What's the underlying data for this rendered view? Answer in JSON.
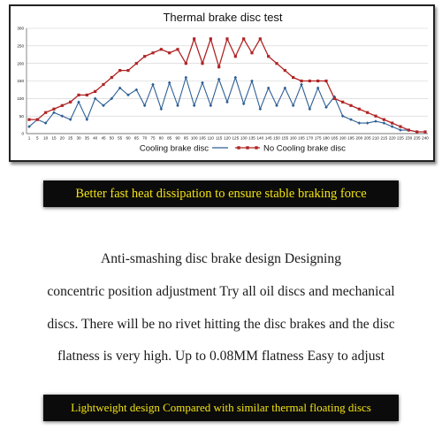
{
  "chart_data": {
    "type": "line",
    "title": "Thermal brake disc test",
    "xlabel": "",
    "ylabel": "",
    "ylim": [
      0,
      300
    ],
    "y_ticks": [
      0,
      50,
      100,
      150,
      200,
      250,
      300
    ],
    "grid": true,
    "legend_position": "bottom",
    "x": [
      1,
      5,
      10,
      15,
      20,
      25,
      30,
      35,
      40,
      45,
      50,
      55,
      60,
      65,
      70,
      75,
      80,
      85,
      90,
      95,
      100,
      105,
      110,
      115,
      120,
      125,
      130,
      135,
      140,
      145,
      150,
      155,
      160,
      165,
      170,
      175,
      180,
      185,
      190,
      195,
      200,
      205,
      210,
      215,
      220,
      225,
      230,
      235,
      240
    ],
    "series": [
      {
        "name": "Cooling brake disc",
        "color": "#2e5f95",
        "marker": "diamond",
        "values": [
          20,
          40,
          30,
          60,
          50,
          40,
          90,
          40,
          100,
          80,
          100,
          130,
          110,
          125,
          80,
          140,
          70,
          145,
          80,
          160,
          80,
          145,
          80,
          155,
          90,
          160,
          85,
          150,
          70,
          130,
          80,
          130,
          80,
          140,
          70,
          130,
          75,
          105,
          50,
          40,
          30,
          30,
          35,
          30,
          20,
          10,
          10,
          5,
          null
        ]
      },
      {
        "name": "No Cooling brake disc",
        "color": "#b02424",
        "marker": "square",
        "values": [
          40,
          40,
          60,
          70,
          80,
          90,
          110,
          110,
          120,
          140,
          160,
          180,
          180,
          200,
          220,
          230,
          240,
          230,
          240,
          200,
          270,
          200,
          270,
          190,
          270,
          220,
          270,
          230,
          270,
          220,
          200,
          180,
          160,
          150,
          150,
          150,
          150,
          100,
          90,
          80,
          70,
          60,
          50,
          40,
          30,
          20,
          10,
          5,
          5
        ]
      }
    ]
  },
  "banner_top": "Better fast heat dissipation to ensure stable braking force",
  "paragraph": {
    "line1": "Anti-smashing disc brake design Designing",
    "line2": "concentric position adjustment Try all oil discs and mechanical",
    "line3": "discs. There will be no rivet hitting the disc brakes and the disc",
    "line4": "flatness is very high. Up to 0.08MM flatness Easy to adjust"
  },
  "banner_bottom": "Lightweight design Compared with similar thermal floating discs"
}
